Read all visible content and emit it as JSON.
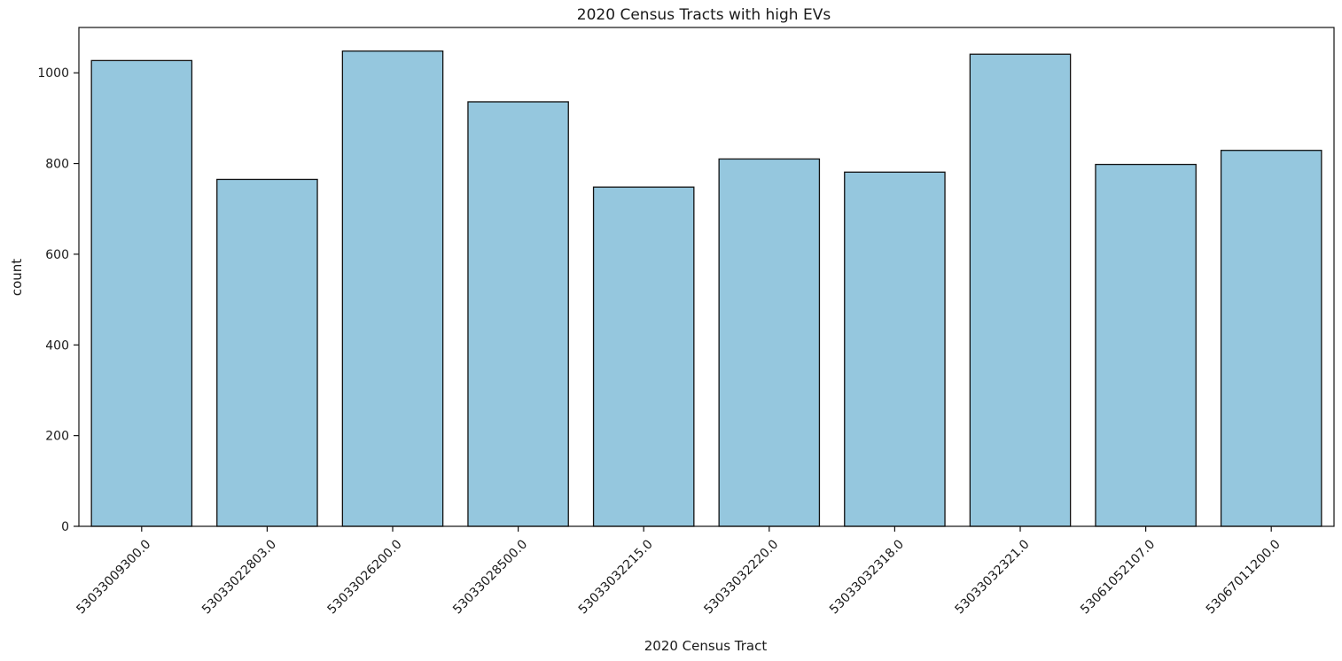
{
  "chart_data": {
    "type": "bar",
    "title": "2020 Census Tracts with high EVs",
    "xlabel": "2020 Census Tract",
    "ylabel": "count",
    "categories": [
      "53033009300.0",
      "53033022803.0",
      "53033026200.0",
      "53033028500.0",
      "53033032215.0",
      "53033032220.0",
      "53033032318.0",
      "53033032321.0",
      "53061052107.0",
      "53067011200.0"
    ],
    "values": [
      1027,
      765,
      1048,
      936,
      748,
      810,
      781,
      1041,
      798,
      829
    ],
    "ylim": [
      0,
      1100
    ],
    "yticks": [
      0,
      200,
      400,
      600,
      800,
      1000
    ],
    "bar_color": "#95c7de",
    "edge_color": "#111111",
    "grid": false,
    "legend": "none"
  }
}
